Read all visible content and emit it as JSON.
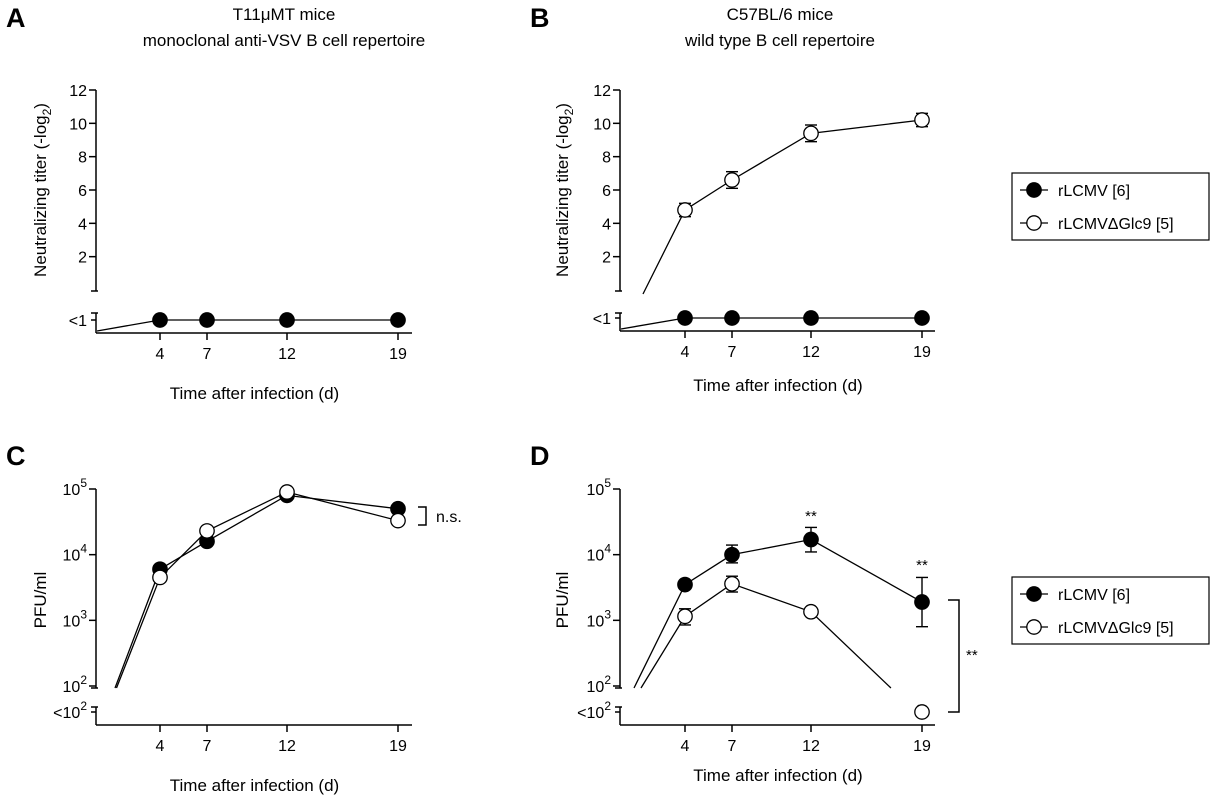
{
  "chart_data": [
    {
      "id": "A",
      "type": "line",
      "panel_label": "A",
      "title_lines": [
        "T11μMT mice",
        "monoclonal anti-VSV B cell repertoire"
      ],
      "xlabel": "Time after infection (d)",
      "ylabel": "Neutralizing titer (-log",
      "ylabel_sub": "2",
      "ylabel_close": ")",
      "x_ticks": [
        4,
        7,
        12,
        19
      ],
      "y_ticks": [
        2,
        4,
        6,
        8,
        10,
        12
      ],
      "below_label": "<1",
      "ylim": [
        0,
        12
      ],
      "series": [
        {
          "name": "rLCMV [6]",
          "marker": "filled",
          "x": [
            4,
            7,
            12,
            19
          ],
          "y": [
            "<1",
            "<1",
            "<1",
            "<1"
          ],
          "err": [
            0,
            0,
            0,
            0
          ]
        }
      ]
    },
    {
      "id": "B",
      "type": "line",
      "panel_label": "B",
      "title_lines": [
        "C57BL/6 mice",
        "wild type B cell repertoire"
      ],
      "xlabel": "Time after infection (d)",
      "ylabel": "Neutralizing titer (-log",
      "ylabel_sub": "2",
      "ylabel_close": ")",
      "x_ticks": [
        4,
        7,
        12,
        19
      ],
      "y_ticks": [
        2,
        4,
        6,
        8,
        10,
        12
      ],
      "below_label": "<1",
      "ylim": [
        0,
        12
      ],
      "series": [
        {
          "name": "rLCMV [6]",
          "marker": "filled",
          "x": [
            4,
            7,
            12,
            19
          ],
          "y": [
            "<1",
            "<1",
            "<1",
            "<1"
          ],
          "err": [
            0,
            0,
            0,
            0
          ]
        },
        {
          "name": "rLCMVΔGlc9 [5]",
          "marker": "open",
          "x": [
            4,
            7,
            12,
            19
          ],
          "y": [
            4.8,
            6.6,
            9.4,
            10.2
          ],
          "err": [
            0.4,
            0.5,
            0.5,
            0.4
          ]
        }
      ]
    },
    {
      "id": "C",
      "type": "line",
      "panel_label": "C",
      "title_lines": [],
      "xlabel": "Time after infection (d)",
      "ylabel": "PFU/ml",
      "log_scale": true,
      "x_ticks": [
        4,
        7,
        12,
        19
      ],
      "y_tick_exponents": [
        2,
        3,
        4,
        5
      ],
      "below_label_base": "<10",
      "below_label_exp": "2",
      "ylim_log10": [
        2,
        5
      ],
      "annotation": "n.s.",
      "series": [
        {
          "name": "rLCMV [6]",
          "marker": "filled",
          "x": [
            4,
            7,
            12,
            19
          ],
          "y": [
            6000,
            16000,
            80000,
            50000
          ]
        },
        {
          "name": "rLCMVΔGlc9 [5]",
          "marker": "open",
          "x": [
            4,
            7,
            12,
            19
          ],
          "y": [
            4500,
            23000,
            90000,
            33000
          ]
        }
      ]
    },
    {
      "id": "D",
      "type": "line",
      "panel_label": "D",
      "title_lines": [],
      "xlabel": "Time after infection (d)",
      "ylabel": "PFU/ml",
      "log_scale": true,
      "x_ticks": [
        4,
        7,
        12,
        19
      ],
      "y_tick_exponents": [
        2,
        3,
        4,
        5
      ],
      "below_label_base": "<10",
      "below_label_exp": "2",
      "ylim_log10": [
        2,
        5
      ],
      "significance": [
        "**",
        "**"
      ],
      "bracket_label": "**",
      "series": [
        {
          "name": "rLCMV [6]",
          "marker": "filled",
          "x": [
            4,
            7,
            12,
            19
          ],
          "y": [
            3500,
            10000,
            17000,
            1900
          ],
          "err_low": [
            3500,
            7500,
            11000,
            800
          ],
          "err_high": [
            3500,
            14000,
            26000,
            4500
          ]
        },
        {
          "name": "rLCMVΔGlc9 [5]",
          "marker": "open",
          "x": [
            4,
            7,
            12,
            19
          ],
          "y": [
            1150,
            3600,
            1350,
            "<100"
          ],
          "err_low": [
            850,
            2700,
            1350,
            "<100"
          ],
          "err_high": [
            1500,
            4700,
            1350,
            "<100"
          ]
        }
      ]
    }
  ],
  "legends": [
    {
      "entries": [
        "rLCMV [6]",
        "rLCMVΔGlc9 [5]"
      ]
    },
    {
      "entries": [
        "rLCMV [6]",
        "rLCMVΔGlc9 [5]"
      ]
    }
  ]
}
